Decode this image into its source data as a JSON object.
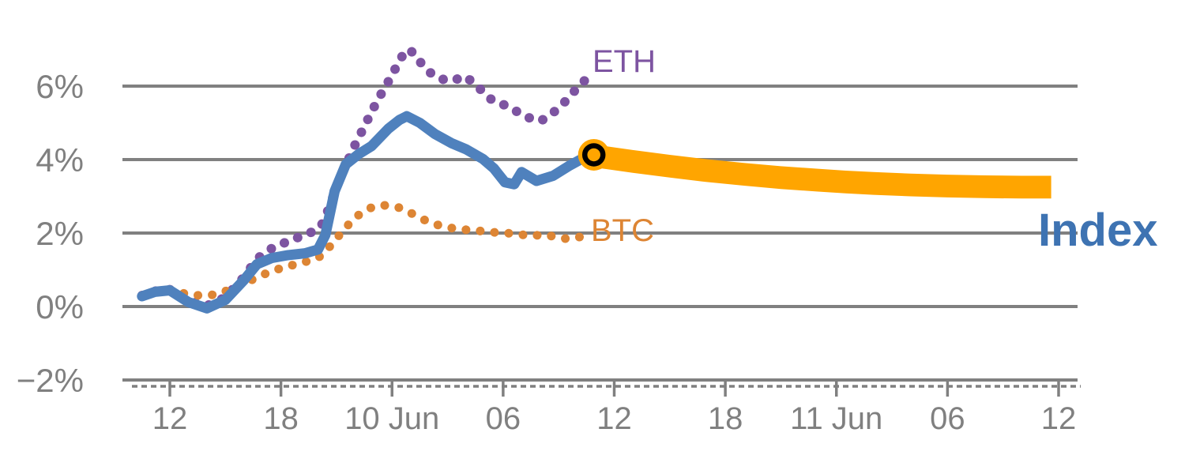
{
  "page": {
    "background": "#FFFFFF"
  },
  "annotations": {
    "eth": {
      "text": "ETH",
      "color": "#7D54A1"
    },
    "btc": {
      "text": "BTC",
      "color": "#DD8534"
    },
    "index": {
      "text": "Index",
      "color": "#3E73B2"
    }
  },
  "chart_data": {
    "type": "line",
    "title": "",
    "ylabel": "",
    "xlabel": "",
    "grid": "horizontal gridlines on",
    "legend_position": "inline end-of-line labels",
    "style": {
      "grid_color": "#808080",
      "tick_color": "#808080",
      "background": "#FFFFFF"
    },
    "x_axis": {
      "unit": "hours from first labeled tick (6h tick spacing)",
      "ticks": [
        {
          "h": 0,
          "label": "12"
        },
        {
          "h": 6,
          "label": "18"
        },
        {
          "h": 12,
          "label": "10 Jun"
        },
        {
          "h": 18,
          "label": "06"
        },
        {
          "h": 24,
          "label": "12"
        },
        {
          "h": 30,
          "label": "18"
        },
        {
          "h": 36,
          "label": "11 Jun"
        },
        {
          "h": 42,
          "label": "06"
        },
        {
          "h": 48,
          "label": "12"
        }
      ]
    },
    "y_axis": {
      "unit": "%",
      "range": [
        -2,
        7.5
      ],
      "gridlines": [
        0,
        2,
        4,
        6
      ],
      "ticks": [
        {
          "value": -2,
          "label": "−2%"
        },
        {
          "value": 0,
          "label": "0%"
        },
        {
          "value": 2,
          "label": "2%"
        },
        {
          "value": 4,
          "label": "4%"
        },
        {
          "value": 6,
          "label": "6%"
        }
      ]
    },
    "series": [
      {
        "name": "ETH",
        "style": "dotted",
        "color": "#7D54A1",
        "width": 12,
        "dot_spacing": 18,
        "points": [
          [
            -1.5,
            0.3
          ],
          [
            -0.8,
            0.42
          ],
          [
            0,
            0.46
          ],
          [
            1,
            0.15
          ],
          [
            2,
            0.02
          ],
          [
            3,
            0.25
          ],
          [
            4,
            0.8
          ],
          [
            4.7,
            1.3
          ],
          [
            5.5,
            1.58
          ],
          [
            6.4,
            1.78
          ],
          [
            7.3,
            1.95
          ],
          [
            8.0,
            2.1
          ],
          [
            8.3,
            2.3
          ],
          [
            8.6,
            2.7
          ],
          [
            8.9,
            3.1
          ],
          [
            9.2,
            3.5
          ],
          [
            9.6,
            3.95
          ],
          [
            10.0,
            4.4
          ],
          [
            10.4,
            4.8
          ],
          [
            10.8,
            5.2
          ],
          [
            11.2,
            5.6
          ],
          [
            11.6,
            5.95
          ],
          [
            12.0,
            6.3
          ],
          [
            12.4,
            6.7
          ],
          [
            12.8,
            7.0
          ],
          [
            13.2,
            6.9
          ],
          [
            13.6,
            6.6
          ],
          [
            14.1,
            6.35
          ],
          [
            14.6,
            6.2
          ],
          [
            15.1,
            6.15
          ],
          [
            15.6,
            6.2
          ],
          [
            15.9,
            6.27
          ],
          [
            16.4,
            6.1
          ],
          [
            16.9,
            5.85
          ],
          [
            17.4,
            5.62
          ],
          [
            18.1,
            5.48
          ],
          [
            18.6,
            5.35
          ],
          [
            19.1,
            5.2
          ],
          [
            19.6,
            5.1
          ],
          [
            20.0,
            5.05
          ],
          [
            20.4,
            5.15
          ],
          [
            20.8,
            5.32
          ],
          [
            21.2,
            5.5
          ],
          [
            21.6,
            5.72
          ],
          [
            22.0,
            5.95
          ],
          [
            22.4,
            6.15
          ],
          [
            22.8,
            6.42
          ]
        ]
      },
      {
        "name": "BTC",
        "style": "dotted",
        "color": "#DD8534",
        "width": 11,
        "dot_spacing": 18,
        "points": [
          [
            -1.5,
            0.3
          ],
          [
            -0.8,
            0.4
          ],
          [
            0,
            0.46
          ],
          [
            0.8,
            0.35
          ],
          [
            1.6,
            0.3
          ],
          [
            2.4,
            0.32
          ],
          [
            3.2,
            0.45
          ],
          [
            4.0,
            0.62
          ],
          [
            4.8,
            0.82
          ],
          [
            5.6,
            0.98
          ],
          [
            6.4,
            1.1
          ],
          [
            7.2,
            1.2
          ],
          [
            8.0,
            1.32
          ],
          [
            8.5,
            1.55
          ],
          [
            9.0,
            1.85
          ],
          [
            9.5,
            2.15
          ],
          [
            10.0,
            2.42
          ],
          [
            10.5,
            2.6
          ],
          [
            11.0,
            2.72
          ],
          [
            11.5,
            2.76
          ],
          [
            12.0,
            2.73
          ],
          [
            12.5,
            2.68
          ],
          [
            13.5,
            2.42
          ],
          [
            14.1,
            2.27
          ],
          [
            15.0,
            2.15
          ],
          [
            15.8,
            2.1
          ],
          [
            16.7,
            2.06
          ],
          [
            17.5,
            2.02
          ],
          [
            18.2,
            2.0
          ],
          [
            18.9,
            1.96
          ],
          [
            19.6,
            1.93
          ],
          [
            20.3,
            1.96
          ],
          [
            20.9,
            1.88
          ],
          [
            21.5,
            1.84
          ],
          [
            22.1,
            1.89
          ],
          [
            22.5,
            1.93
          ],
          [
            22.8,
            1.97
          ]
        ]
      },
      {
        "name": "Index",
        "style": "solid",
        "color": "#4F81BD",
        "width": 13,
        "points": [
          [
            -1.5,
            0.28
          ],
          [
            -0.8,
            0.4
          ],
          [
            0,
            0.44
          ],
          [
            1,
            0.12
          ],
          [
            2,
            -0.05
          ],
          [
            3,
            0.18
          ],
          [
            4,
            0.72
          ],
          [
            4.7,
            1.15
          ],
          [
            5.5,
            1.32
          ],
          [
            6.4,
            1.4
          ],
          [
            7.3,
            1.45
          ],
          [
            8.0,
            1.55
          ],
          [
            8.4,
            1.95
          ],
          [
            8.9,
            3.14
          ],
          [
            9.5,
            3.87
          ],
          [
            10.2,
            4.15
          ],
          [
            10.9,
            4.37
          ],
          [
            11.8,
            4.84
          ],
          [
            12.4,
            5.08
          ],
          [
            12.8,
            5.18
          ],
          [
            13.5,
            5.0
          ],
          [
            14.3,
            4.7
          ],
          [
            15.2,
            4.45
          ],
          [
            16.0,
            4.28
          ],
          [
            16.9,
            4.02
          ],
          [
            17.5,
            3.76
          ],
          [
            18.1,
            3.38
          ],
          [
            18.6,
            3.33
          ],
          [
            19.0,
            3.66
          ],
          [
            19.8,
            3.42
          ],
          [
            20.7,
            3.56
          ],
          [
            21.6,
            3.84
          ],
          [
            22.4,
            4.06
          ],
          [
            22.9,
            4.13
          ]
        ]
      },
      {
        "name": "Index forecast",
        "style": "band",
        "color": "#FFA500",
        "band_halfwidth": 0.3,
        "points": [
          [
            22.9,
            4.11
          ],
          [
            25,
            3.96
          ],
          [
            27,
            3.83
          ],
          [
            29,
            3.71
          ],
          [
            31,
            3.61
          ],
          [
            33,
            3.52
          ],
          [
            35,
            3.45
          ],
          [
            36.5,
            3.4
          ],
          [
            38,
            3.36
          ],
          [
            40,
            3.32
          ],
          [
            42,
            3.29
          ],
          [
            44,
            3.27
          ],
          [
            46,
            3.26
          ],
          [
            47.6,
            3.26
          ]
        ]
      }
    ],
    "marker": {
      "name": "forecast-start-marker",
      "h": 22.9,
      "value": 4.13,
      "fill": "#FFA500",
      "ring_color": "#000000"
    }
  }
}
